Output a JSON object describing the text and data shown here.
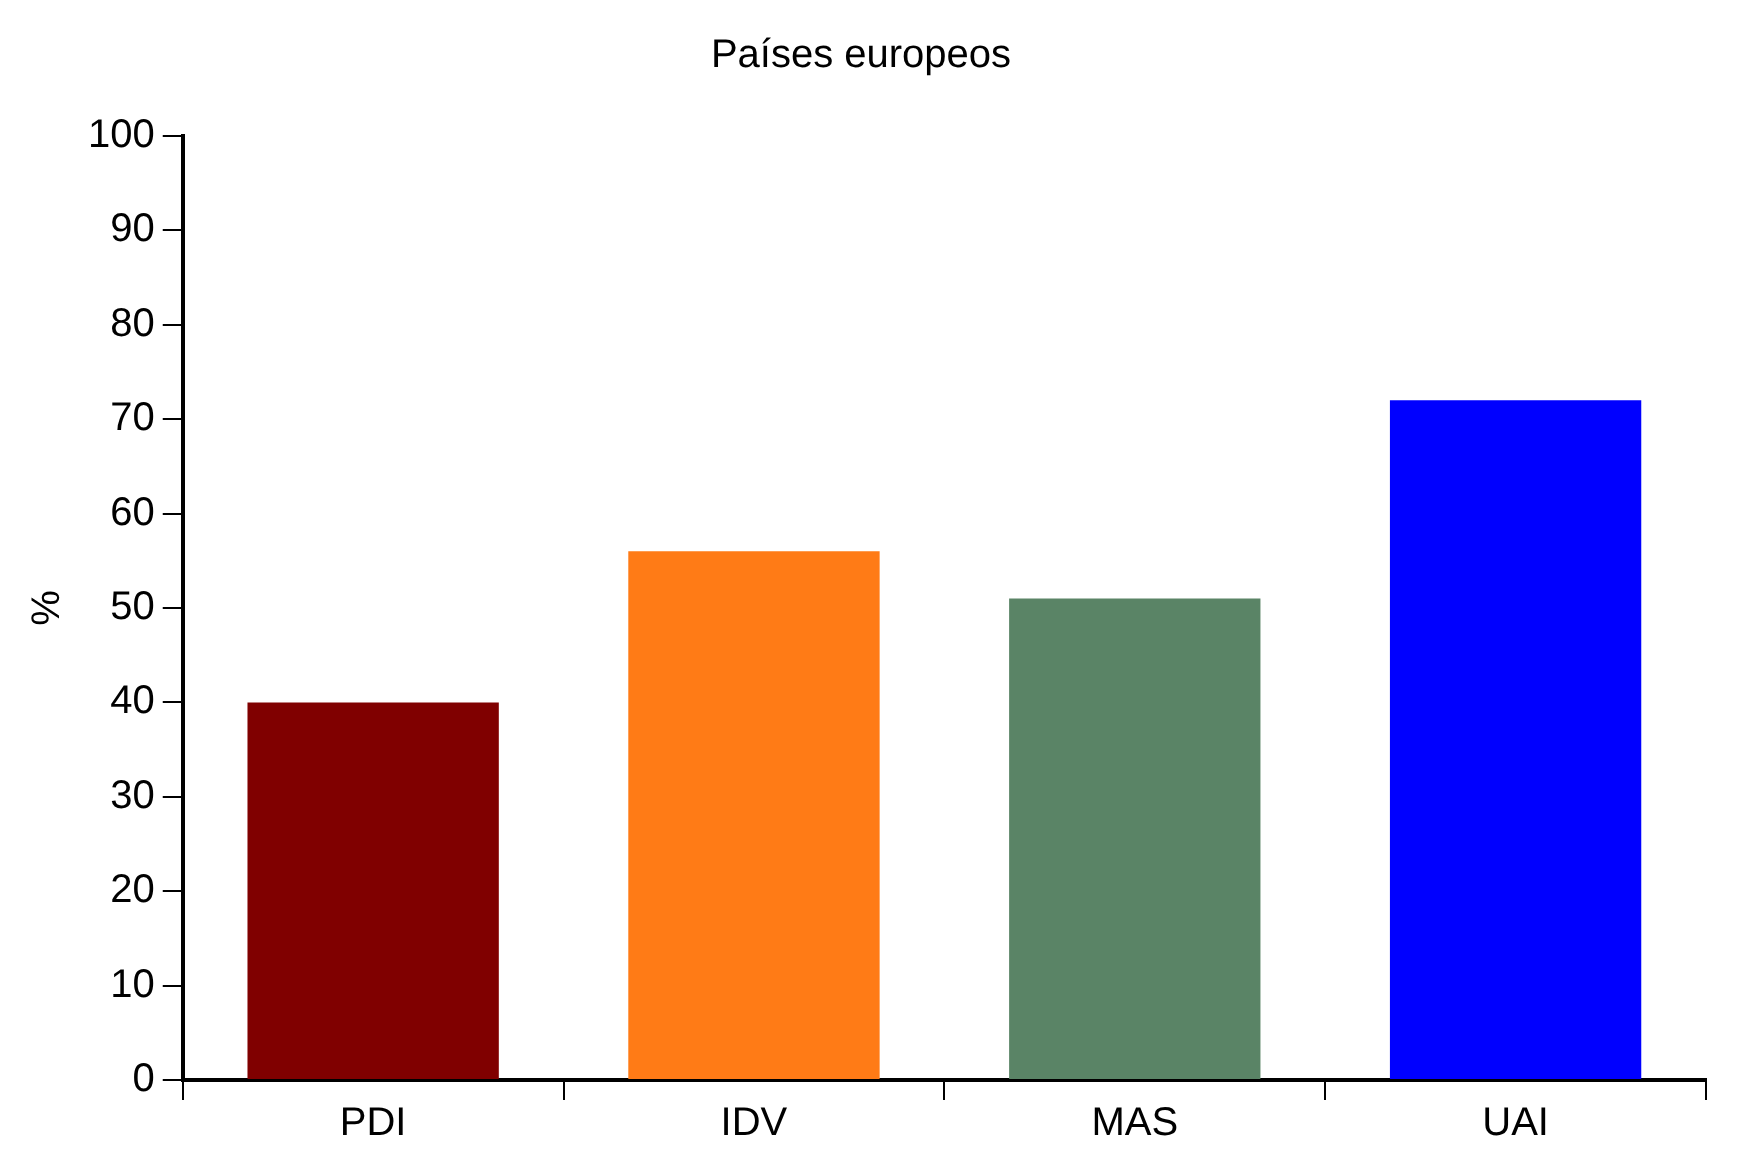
{
  "chart_data": {
    "type": "bar",
    "title": "Países europeos",
    "ylabel": "%",
    "categories": [
      "PDI",
      "IDV",
      "MAS",
      "UAI"
    ],
    "values": [
      40,
      56,
      51,
      72
    ],
    "colors": [
      "#800000",
      "#ff7b16",
      "#5a8466",
      "#0000ff"
    ],
    "ylim": [
      0,
      100
    ],
    "yticks": [
      0,
      10,
      20,
      30,
      40,
      50,
      60,
      70,
      80,
      90,
      100
    ]
  }
}
